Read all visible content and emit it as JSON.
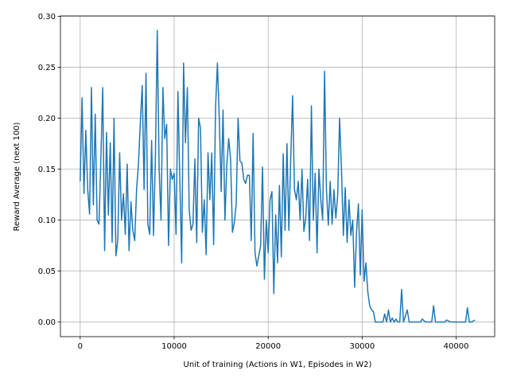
{
  "chart_data": {
    "type": "line",
    "xlabel": "Unit of training (Actions in W1, Episodes in W2)",
    "ylabel": "Reward Average (next 100)",
    "color": "#1f77b4",
    "grid": true,
    "xlim": [
      -2100,
      44100
    ],
    "ylim": [
      -0.0143,
      0.3003
    ],
    "xticks": [
      0,
      10000,
      20000,
      30000,
      40000
    ],
    "yticks": [
      {
        "value": 0,
        "label": "0.00"
      },
      {
        "value": 0.05,
        "label": "0.05"
      },
      {
        "value": 0.1,
        "label": "0.10"
      },
      {
        "value": 0.15,
        "label": "0.15"
      },
      {
        "value": 0.2,
        "label": "0.20"
      },
      {
        "value": 0.25,
        "label": "0.25"
      },
      {
        "value": 0.3,
        "label": "0.30"
      }
    ],
    "x": [
      0,
      200,
      400,
      600,
      800,
      1000,
      1200,
      1400,
      1600,
      1800,
      2000,
      2200,
      2400,
      2600,
      2800,
      3000,
      3200,
      3400,
      3600,
      3800,
      4000,
      4200,
      4400,
      4600,
      4800,
      5000,
      5200,
      5400,
      5600,
      5800,
      6000,
      6200,
      6400,
      6600,
      6800,
      7000,
      7200,
      7400,
      7600,
      7800,
      8000,
      8200,
      8400,
      8600,
      8800,
      9000,
      9200,
      9400,
      9600,
      9800,
      10000,
      10200,
      10400,
      10600,
      10800,
      11000,
      11200,
      11400,
      11600,
      11800,
      12000,
      12200,
      12400,
      12600,
      12800,
      13000,
      13200,
      13400,
      13600,
      13800,
      14000,
      14200,
      14400,
      14600,
      14800,
      15000,
      15200,
      15400,
      15600,
      15800,
      16000,
      16200,
      16400,
      16600,
      16800,
      17000,
      17200,
      17400,
      17600,
      17800,
      18000,
      18200,
      18400,
      18600,
      18800,
      19000,
      19200,
      19400,
      19600,
      19800,
      20000,
      20200,
      20400,
      20600,
      20800,
      21000,
      21200,
      21400,
      21600,
      21800,
      22000,
      22200,
      22400,
      22600,
      22800,
      23000,
      23200,
      23400,
      23600,
      23800,
      24000,
      24200,
      24400,
      24600,
      24800,
      25000,
      25200,
      25400,
      25600,
      25800,
      26000,
      26200,
      26400,
      26600,
      26800,
      27000,
      27200,
      27400,
      27600,
      27800,
      28000,
      28200,
      28400,
      28600,
      28800,
      29000,
      29200,
      29400,
      29600,
      29800,
      30000,
      30200,
      30400,
      30600,
      30800,
      31000,
      31200,
      31400,
      31600,
      31800,
      32000,
      32200,
      32400,
      32600,
      32800,
      33000,
      33200,
      33400,
      33600,
      33800,
      34000,
      34200,
      34400,
      34600,
      34800,
      35000,
      35200,
      35400,
      35600,
      35800,
      36000,
      36200,
      36400,
      36600,
      36800,
      37000,
      37200,
      37400,
      37600,
      37800,
      38000,
      38200,
      38400,
      38600,
      38800,
      39000,
      39200,
      39400,
      39600,
      39800,
      40000,
      40200,
      40400,
      40600,
      40800,
      41000,
      41200,
      41400,
      41600,
      41800,
      42000
    ],
    "values": [
      0.138,
      0.22,
      0.126,
      0.188,
      0.13,
      0.106,
      0.23,
      0.115,
      0.204,
      0.1,
      0.096,
      0.16,
      0.23,
      0.07,
      0.186,
      0.105,
      0.176,
      0.078,
      0.2,
      0.065,
      0.08,
      0.166,
      0.1,
      0.126,
      0.086,
      0.155,
      0.07,
      0.118,
      0.09,
      0.08,
      0.13,
      0.155,
      0.196,
      0.232,
      0.13,
      0.244,
      0.096,
      0.086,
      0.178,
      0.085,
      0.16,
      0.286,
      0.15,
      0.1,
      0.23,
      0.18,
      0.194,
      0.075,
      0.15,
      0.14,
      0.146,
      0.086,
      0.226,
      0.14,
      0.058,
      0.254,
      0.176,
      0.23,
      0.11,
      0.09,
      0.096,
      0.16,
      0.078,
      0.2,
      0.19,
      0.088,
      0.12,
      0.066,
      0.166,
      0.12,
      0.166,
      0.076,
      0.21,
      0.254,
      0.2,
      0.128,
      0.208,
      0.1,
      0.154,
      0.18,
      0.16,
      0.088,
      0.098,
      0.116,
      0.2,
      0.158,
      0.156,
      0.14,
      0.136,
      0.144,
      0.144,
      0.08,
      0.185,
      0.068,
      0.055,
      0.065,
      0.075,
      0.152,
      0.042,
      0.1,
      0.068,
      0.12,
      0.128,
      0.028,
      0.105,
      0.058,
      0.134,
      0.064,
      0.165,
      0.09,
      0.175,
      0.09,
      0.16,
      0.222,
      0.13,
      0.12,
      0.138,
      0.1,
      0.15,
      0.089,
      0.102,
      0.14,
      0.08,
      0.212,
      0.1,
      0.146,
      0.068,
      0.15,
      0.12,
      0.1,
      0.246,
      0.13,
      0.095,
      0.138,
      0.096,
      0.13,
      0.102,
      0.125,
      0.2,
      0.15,
      0.085,
      0.132,
      0.078,
      0.12,
      0.085,
      0.1,
      0.034,
      0.088,
      0.116,
      0.046,
      0.11,
      0.04,
      0.058,
      0.03,
      0.016,
      0.012,
      0.01,
      0,
      0,
      0,
      0,
      0,
      0.008,
      0,
      0.012,
      0,
      0.004,
      0,
      0.003,
      0,
      0,
      0.032,
      0,
      0.006,
      0.012,
      0,
      0,
      0,
      0,
      0,
      0,
      0,
      0.003,
      0.001,
      0,
      0,
      0,
      0,
      0.016,
      0,
      0,
      0,
      0,
      0,
      0,
      0.002,
      0.001,
      0,
      0,
      0,
      0,
      0,
      0,
      0,
      0,
      0,
      0.014,
      0,
      0,
      0.001,
      0.002
    ]
  }
}
